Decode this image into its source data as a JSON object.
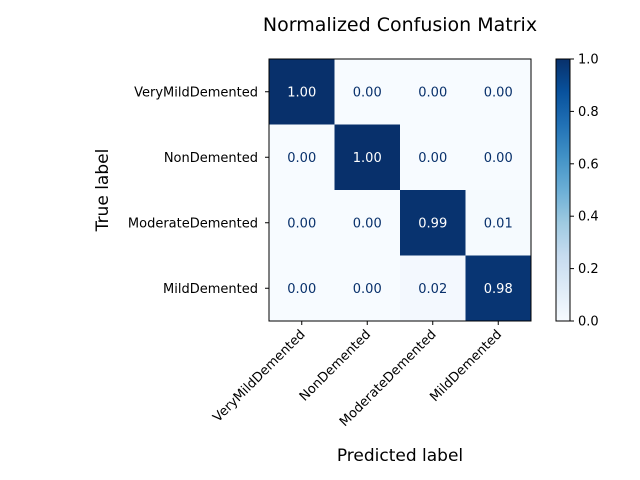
{
  "chart_data": {
    "type": "heatmap",
    "title": "Normalized Confusion Matrix",
    "xlabel": "Predicted label",
    "ylabel": "True label",
    "row_labels": [
      "VeryMildDemented",
      "NonDemented",
      "ModerateDemented",
      "MildDemented"
    ],
    "col_labels": [
      "VeryMildDemented",
      "NonDemented",
      "ModerateDemented",
      "MildDemented"
    ],
    "values": [
      [
        1.0,
        0.0,
        0.0,
        0.0
      ],
      [
        0.0,
        1.0,
        0.0,
        0.0
      ],
      [
        0.0,
        0.0,
        0.99,
        0.01
      ],
      [
        0.0,
        0.0,
        0.02,
        0.98
      ]
    ],
    "value_format": "0.00",
    "colormap": "Blues",
    "vmin": 0.0,
    "vmax": 1.0,
    "colorbar_ticks": [
      "0.0",
      "0.2",
      "0.4",
      "0.6",
      "0.8",
      "1.0"
    ],
    "colors": {
      "low": "#f7fbff",
      "high": "#08306b",
      "text_dark": "#08306b",
      "text_light": "#ffffff"
    }
  }
}
